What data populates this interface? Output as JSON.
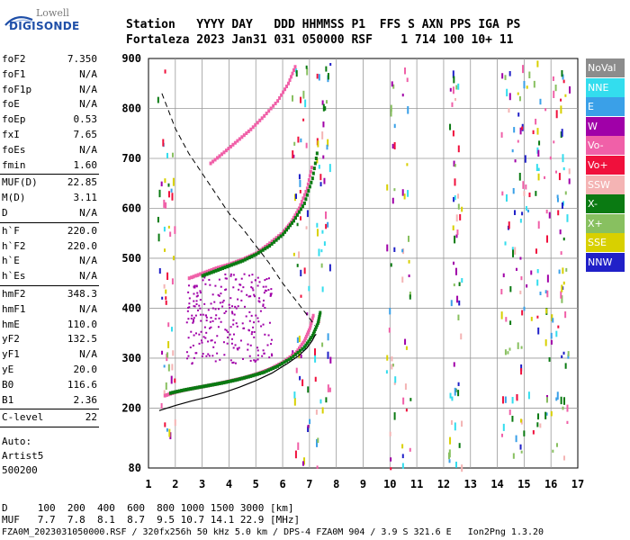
{
  "logo": {
    "line1": "Lowell",
    "line2": "DIGISONDE"
  },
  "header": {
    "line1": "Station   YYYY DAY   DDD HHMMSS P1  FFS S AXN PPS IGA PS",
    "line2": "Fortaleza 2023 Jan31 031 050000 RSF    1 714 100 10+ 11"
  },
  "params": [
    {
      "name": "foF2",
      "value": "7.350"
    },
    {
      "name": "foF1",
      "value": "N/A"
    },
    {
      "name": "foF1p",
      "value": "N/A"
    },
    {
      "name": "foE",
      "value": "N/A"
    },
    {
      "name": "foEp",
      "value": "0.53"
    },
    {
      "name": "fxI",
      "value": "7.65"
    },
    {
      "name": "foEs",
      "value": "N/A"
    },
    {
      "name": "fmin",
      "value": "1.60"
    },
    {
      "sep": true
    },
    {
      "name": "MUF(D)",
      "value": "22.85"
    },
    {
      "name": "M(D)",
      "value": "3.11"
    },
    {
      "name": "D",
      "value": "N/A"
    },
    {
      "sep": true
    },
    {
      "name": "h`F",
      "value": "220.0"
    },
    {
      "name": "h`F2",
      "value": "220.0"
    },
    {
      "name": "h`E",
      "value": "N/A"
    },
    {
      "name": "h`Es",
      "value": "N/A"
    },
    {
      "sep": true
    },
    {
      "name": "hmF2",
      "value": "348.3"
    },
    {
      "name": "hmF1",
      "value": "N/A"
    },
    {
      "name": "hmE",
      "value": "110.0"
    },
    {
      "name": "yF2",
      "value": "132.5"
    },
    {
      "name": "yF1",
      "value": "N/A"
    },
    {
      "name": "yE",
      "value": "20.0"
    },
    {
      "name": "B0",
      "value": "116.6"
    },
    {
      "name": "B1",
      "value": "2.36"
    },
    {
      "sep": true
    },
    {
      "name": "C-level",
      "value": "22"
    },
    {
      "sep": true
    }
  ],
  "auto": {
    "line1": "Auto:",
    "line2": "Artist5",
    "line3": "500200"
  },
  "legend": [
    {
      "label": "NoVal",
      "color": "#8c8c8c"
    },
    {
      "label": "NNE",
      "color": "#33ddee"
    },
    {
      "label": "E",
      "color": "#3aa0e8"
    },
    {
      "label": "W",
      "color": "#a000a8"
    },
    {
      "label": "Vo-",
      "color": "#f060a8"
    },
    {
      "label": "Vo+",
      "color": "#f0103c"
    },
    {
      "label": "SSW",
      "color": "#f4b4b4"
    },
    {
      "label": "X-",
      "color": "#0a7a12"
    },
    {
      "label": "X+",
      "color": "#88c060"
    },
    {
      "label": "SSE",
      "color": "#d8d000"
    },
    {
      "label": "NNW",
      "color": "#2020c8"
    }
  ],
  "bottom": {
    "line1": "D     100  200  400  600  800 1000 1500 3000 [km]",
    "line2": "MUF   7.7  7.8  8.1  8.7  9.5 10.7 14.1 22.9 [MHz]",
    "line3": "FZA0M_2023031050000.RSF / 320fx256h 50 kHz 5.0 km / DPS-4 FZA0M 904 / 3.9 S 321.6 E   Ion2Png 1.3.20"
  },
  "chart_data": {
    "type": "scatter",
    "title": "",
    "xlabel": "",
    "ylabel": "",
    "xlim": [
      1,
      17
    ],
    "ylim": [
      80,
      900
    ],
    "xticks": [
      1,
      2,
      3,
      4,
      5,
      6,
      7,
      8,
      9,
      10,
      11,
      12,
      13,
      14,
      15,
      16,
      17
    ],
    "yticks": [
      80,
      200,
      300,
      400,
      500,
      600,
      700,
      800,
      900
    ],
    "grid": true,
    "series": [
      {
        "name": "Vo-",
        "color": "#f060a8",
        "x": [
          1.6,
          2.0,
          2.5,
          3.0,
          3.5,
          4.0,
          4.5,
          5.0,
          5.5,
          6.0,
          6.5,
          6.8,
          7.0,
          7.15
        ],
        "y": [
          225,
          232,
          238,
          243,
          248,
          254,
          260,
          268,
          278,
          292,
          312,
          335,
          360,
          390
        ]
      },
      {
        "name": "X-",
        "color": "#0a7a12",
        "x": [
          1.8,
          2.3,
          2.8,
          3.3,
          3.8,
          4.3,
          4.8,
          5.3,
          5.8,
          6.3,
          6.8,
          7.1,
          7.3,
          7.4
        ],
        "y": [
          230,
          236,
          241,
          246,
          251,
          257,
          264,
          272,
          284,
          300,
          322,
          345,
          370,
          395
        ]
      },
      {
        "name": "Vo- 2F",
        "color": "#f060a8",
        "x": [
          2.5,
          3.0,
          3.5,
          4.0,
          4.5,
          5.0,
          5.5,
          6.0,
          6.3,
          6.6,
          6.9,
          7.1
        ],
        "y": [
          460,
          470,
          480,
          488,
          498,
          510,
          530,
          552,
          572,
          600,
          640,
          690
        ]
      },
      {
        "name": "X- 2F",
        "color": "#0a7a12",
        "x": [
          3.0,
          3.5,
          4.0,
          4.5,
          5.0,
          5.5,
          6.0,
          6.4,
          6.8,
          7.1,
          7.3
        ],
        "y": [
          465,
          475,
          485,
          495,
          508,
          525,
          548,
          575,
          610,
          660,
          720
        ]
      },
      {
        "name": "Vo- 3F",
        "color": "#f060a8",
        "x": [
          3.3,
          3.8,
          4.3,
          4.8,
          5.3,
          5.8,
          6.2,
          6.5
        ],
        "y": [
          690,
          712,
          735,
          758,
          785,
          815,
          850,
          890
        ]
      }
    ],
    "profile": {
      "x": [
        1.4,
        2.0,
        2.6,
        3.2,
        3.8,
        4.4,
        5.0,
        5.6,
        6.2,
        6.6,
        6.9,
        7.1,
        7.2,
        7.25
      ],
      "y": [
        195,
        205,
        214,
        222,
        231,
        242,
        255,
        270,
        290,
        305,
        320,
        335,
        345,
        348
      ]
    },
    "muf_curve": {
      "x": [
        1.5,
        2.0,
        2.5,
        3.0,
        3.5,
        4.0,
        4.5,
        5.0,
        5.5,
        6.0,
        6.5,
        7.0,
        7.2
      ],
      "y": [
        830,
        760,
        710,
        670,
        630,
        590,
        560,
        525,
        490,
        450,
        415,
        380,
        365
      ]
    }
  }
}
